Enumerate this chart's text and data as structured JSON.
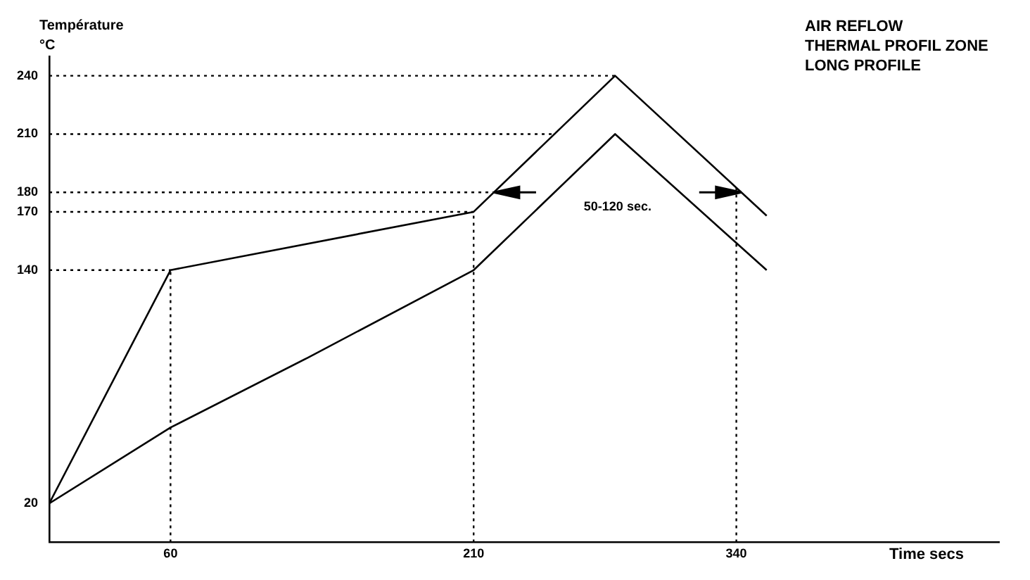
{
  "chart_data": {
    "type": "line",
    "title": "AIR REFLOW",
    "subtitle": "THERMAL PROFIL ZONE LONG PROFILE",
    "xlabel": "Time secs",
    "ylabel": "Température °C",
    "series": [
      {
        "color": "#000000",
        "x": [
          0,
          60,
          210,
          280,
          355
        ],
        "values": [
          20,
          140,
          170,
          240,
          168
        ]
      },
      {
        "color": "#000000",
        "x": [
          0,
          60,
          128,
          210,
          280,
          355
        ],
        "values": [
          20,
          59,
          95,
          140,
          210,
          140
        ]
      }
    ],
    "xlim": [
      0,
      470
    ],
    "xticks": [
      60,
      210,
      340
    ],
    "ylim": [
      0,
      250
    ],
    "yticks": [
      20,
      140,
      170,
      180,
      210,
      240
    ],
    "ref_lines": [
      {
        "axis": "y",
        "value": 240,
        "color": "#000000",
        "line_style": "dotted"
      },
      {
        "axis": "y",
        "value": 210,
        "color": "#000000",
        "line_style": "dotted"
      },
      {
        "axis": "y",
        "value": 180,
        "color": "#000000",
        "line_style": "dotted",
        "label": "50-120 sec."
      },
      {
        "axis": "y",
        "value": 170,
        "color": "#000000",
        "line_style": "dotted"
      },
      {
        "axis": "y",
        "value": 140,
        "color": "#000000",
        "line_style": "dotted"
      },
      {
        "axis": "x",
        "value": 60,
        "color": "#000000",
        "line_style": "dotted"
      },
      {
        "axis": "x",
        "value": 210,
        "color": "#000000",
        "line_style": "dotted"
      },
      {
        "axis": "x",
        "value": 340,
        "color": "#000000",
        "line_style": "dotted"
      }
    ],
    "grid": false,
    "legend": false,
    "marker": "none",
    "line_style": "solid"
  }
}
